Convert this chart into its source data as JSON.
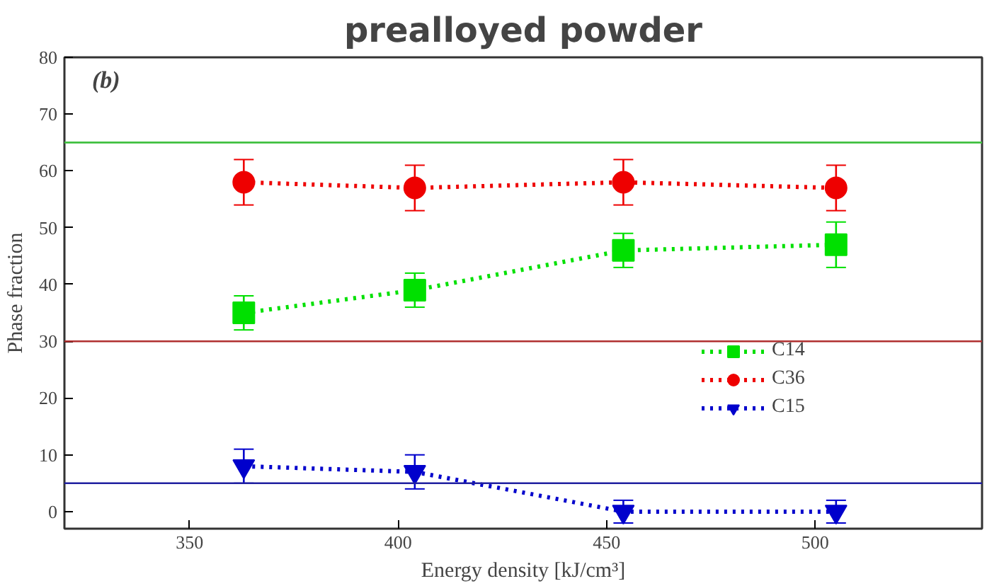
{
  "chart_data": {
    "type": "line",
    "title": "prealloyed powder",
    "xlabel": "Energy density [kJ/cm³]",
    "ylabel": "Phase fraction",
    "annotations": [
      "(b)"
    ],
    "x": [
      363,
      404,
      454,
      505
    ],
    "xlim": [
      320,
      540
    ],
    "xticks": [
      350,
      400,
      450,
      500
    ],
    "ylim": [
      -3,
      80
    ],
    "yticks": [
      0,
      10,
      20,
      30,
      40,
      50,
      60,
      70,
      80
    ],
    "grid": false,
    "legend": "right",
    "line_style": "dotted",
    "series": [
      {
        "name": "C14",
        "color": "#00e000",
        "marker": "square",
        "values": [
          35,
          39,
          46,
          47
        ],
        "errors": [
          3,
          3,
          3,
          4
        ]
      },
      {
        "name": "C36",
        "color": "#ee0000",
        "marker": "circle",
        "values": [
          58,
          57,
          58,
          57
        ],
        "errors": [
          4,
          4,
          4,
          4
        ]
      },
      {
        "name": "C15",
        "color": "#0000cc",
        "marker": "triangle",
        "values": [
          8,
          7,
          0,
          0
        ],
        "errors": [
          3,
          3,
          2,
          2
        ]
      }
    ],
    "ref_lines": [
      {
        "axis": "y",
        "value": 65,
        "color": "#40c040"
      },
      {
        "axis": "y",
        "value": 30,
        "color": "#b03030"
      },
      {
        "axis": "y",
        "value": 5,
        "color": "#2020a0"
      }
    ]
  }
}
